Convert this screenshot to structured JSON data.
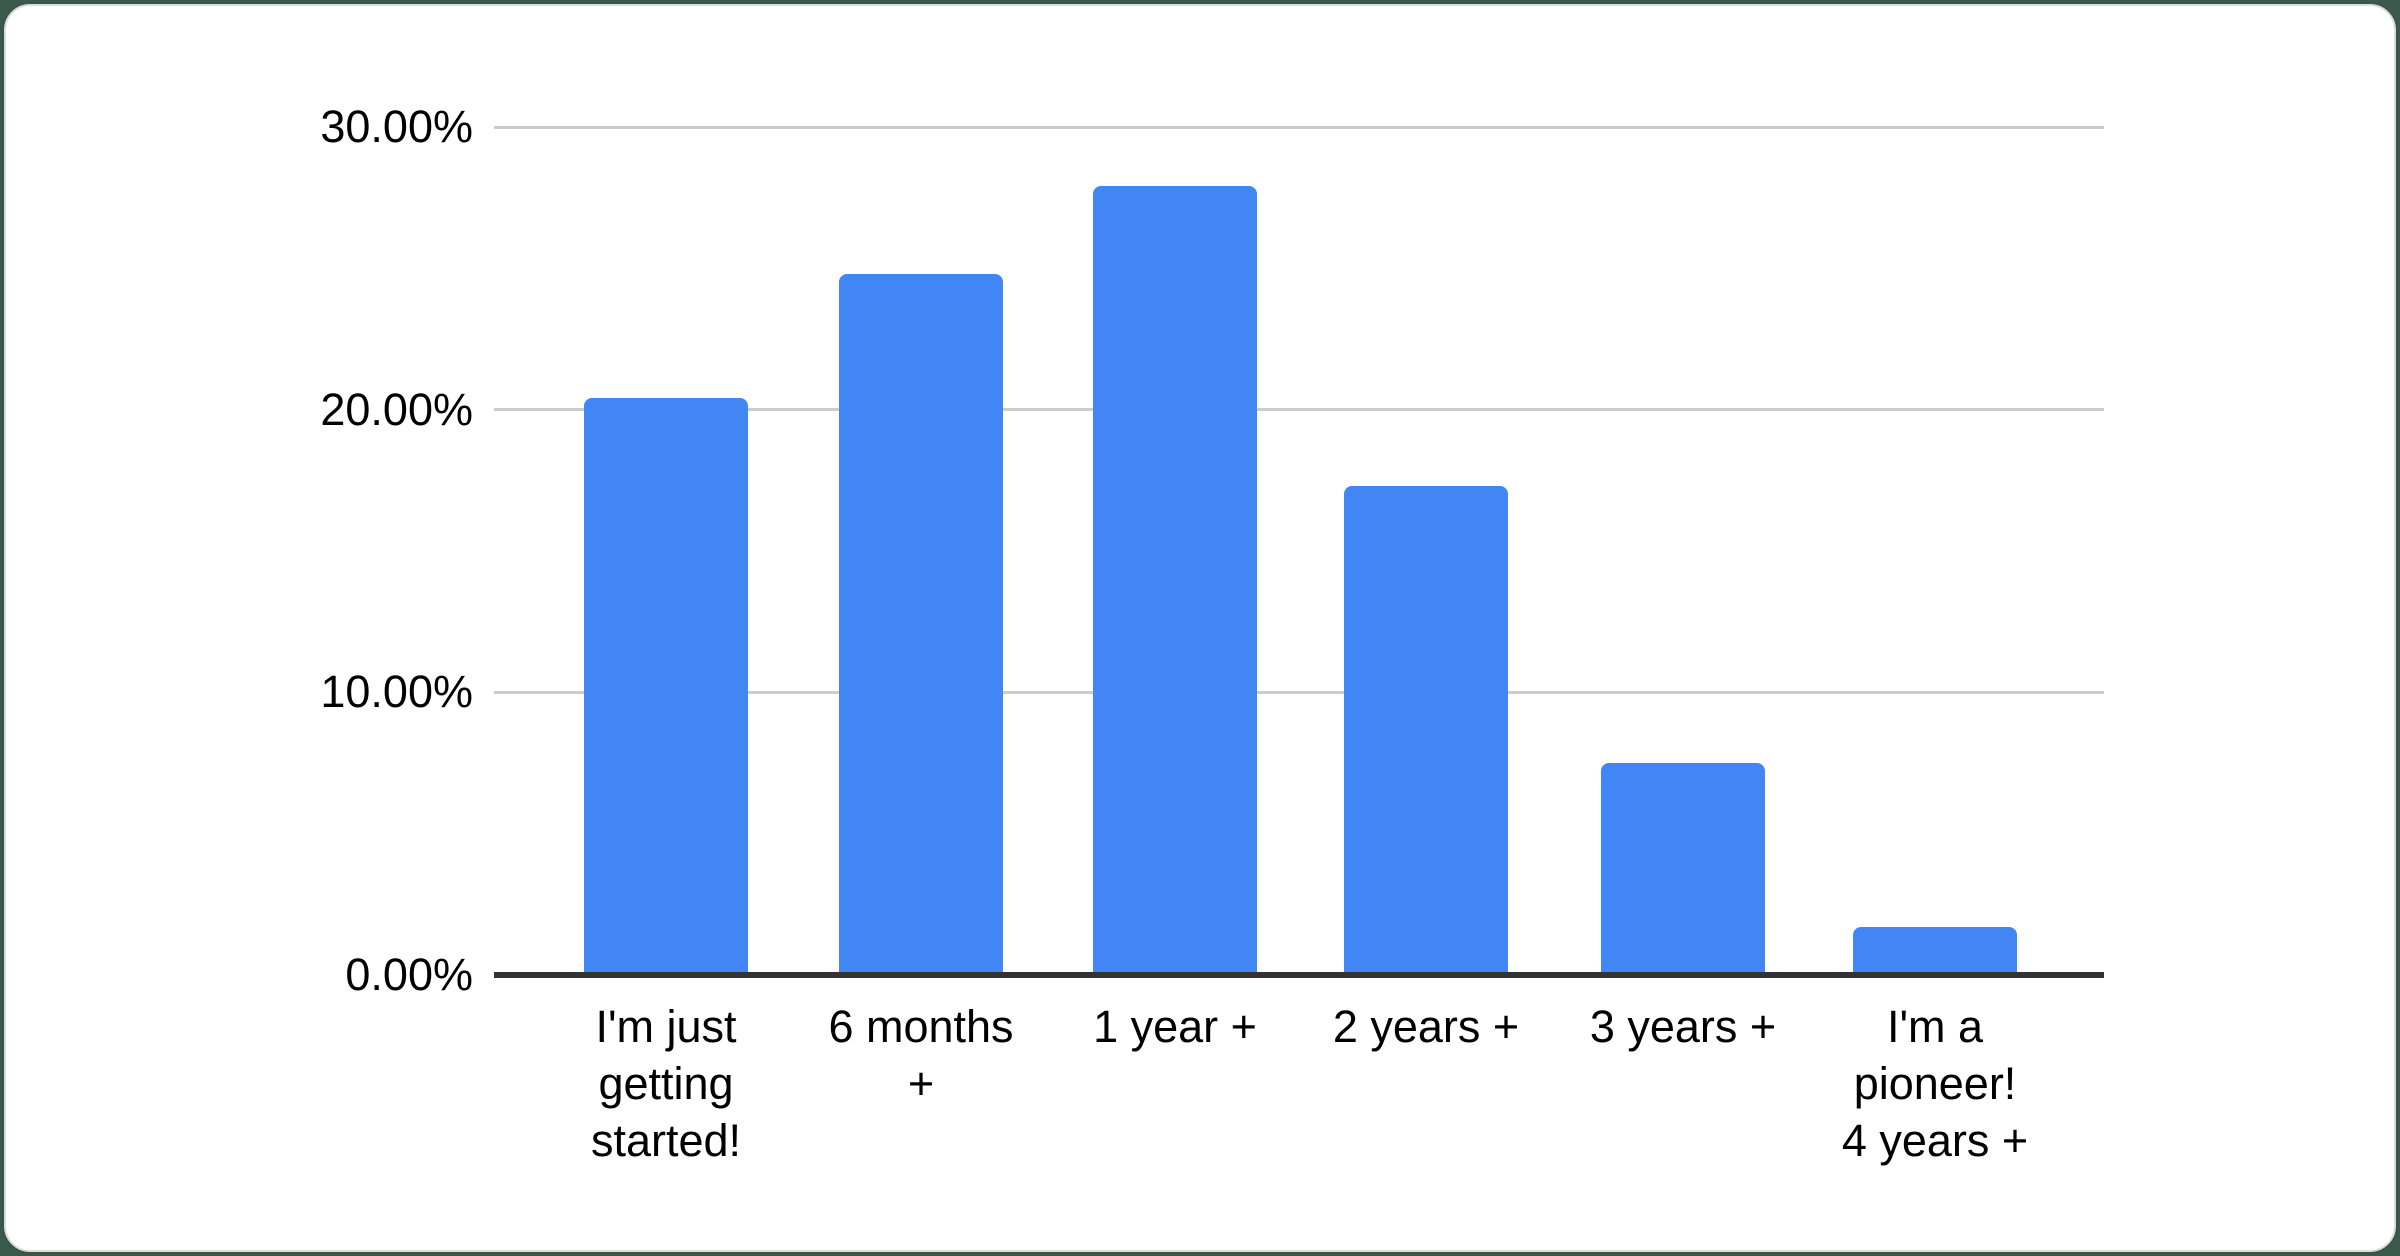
{
  "page_background_color": "#3c5a4c",
  "card": {
    "background_color": "#ffffff",
    "border_color": "#d8dcdb"
  },
  "chart_data": {
    "type": "bar",
    "title": "",
    "xlabel": "",
    "ylabel": "",
    "categories": [
      "I'm just getting started!",
      "6 months +",
      "1 year +",
      "2 years +",
      "3 years +",
      "I'm a pioneer! 4 years +"
    ],
    "category_label_lines": [
      [
        "I'm just",
        "getting",
        "started!"
      ],
      [
        "6 months",
        "+"
      ],
      [
        "1 year +"
      ],
      [
        "2 years +"
      ],
      [
        "3 years +"
      ],
      [
        "I'm a",
        "pioneer!",
        "4 years +"
      ]
    ],
    "values": [
      20.4,
      24.8,
      27.9,
      17.3,
      7.5,
      1.7
    ],
    "unit": "%",
    "ylim": [
      0,
      30
    ],
    "yticks": [
      {
        "value": 30,
        "label": "30.00%"
      },
      {
        "value": 20,
        "label": "20.00%"
      },
      {
        "value": 10,
        "label": "10.00%"
      },
      {
        "value": 0,
        "label": "0.00%"
      }
    ],
    "grid": true,
    "legend_position": "none",
    "bar_color": "#4285f4",
    "gridline_color": "#cccccc",
    "axis_line_color": "#333333",
    "label_color": "#000000"
  }
}
